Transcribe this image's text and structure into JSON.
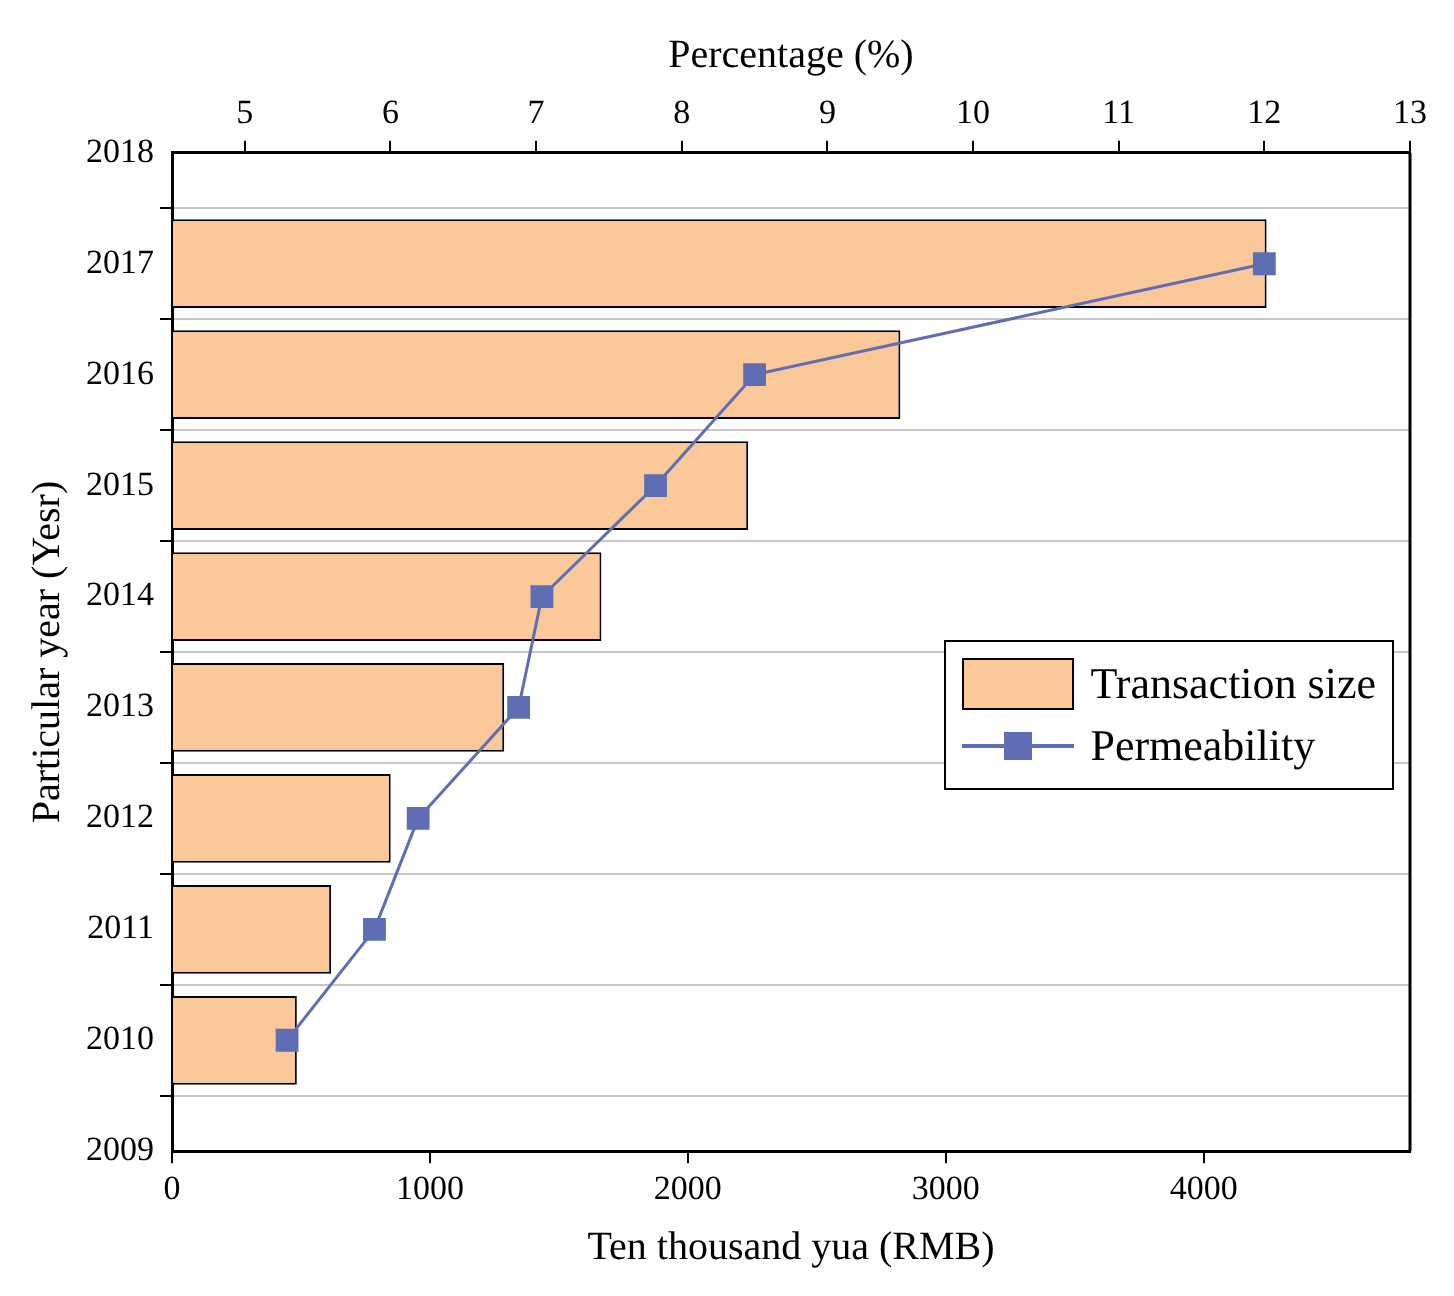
{
  "chart_data": {
    "type": "bar",
    "orientation": "horizontal",
    "xlabel": "Ten thousand yua (RMB)",
    "x2label": "Percentage (%)",
    "ylabel": "Particular year (Yesr)",
    "categories": [
      "2018",
      "2017",
      "2016",
      "2015",
      "2014",
      "2013",
      "2012",
      "2011",
      "2010",
      "2009"
    ],
    "series": [
      {
        "name": "Transaction size",
        "color": "#fbc999",
        "values": [
          null,
          4244,
          2824,
          2234,
          1665,
          1288,
          848,
          617,
          484,
          null
        ]
      },
      {
        "name": "Permeability",
        "type": "line",
        "axis": "x2",
        "color": "#5f6db5",
        "values": [
          null,
          12.0,
          8.5,
          7.82,
          7.04,
          6.88,
          6.19,
          5.89,
          5.29,
          null
        ]
      }
    ],
    "xlim": [
      0,
      4800
    ],
    "xticks": [
      0,
      1000,
      2000,
      3000,
      4000
    ],
    "x2lim": [
      4.5,
      13
    ],
    "x2ticks": [
      5,
      6,
      7,
      8,
      9,
      10,
      11,
      12,
      13
    ],
    "grid": "y",
    "legend": "right",
    "marker": "square",
    "line_style": "solid"
  }
}
